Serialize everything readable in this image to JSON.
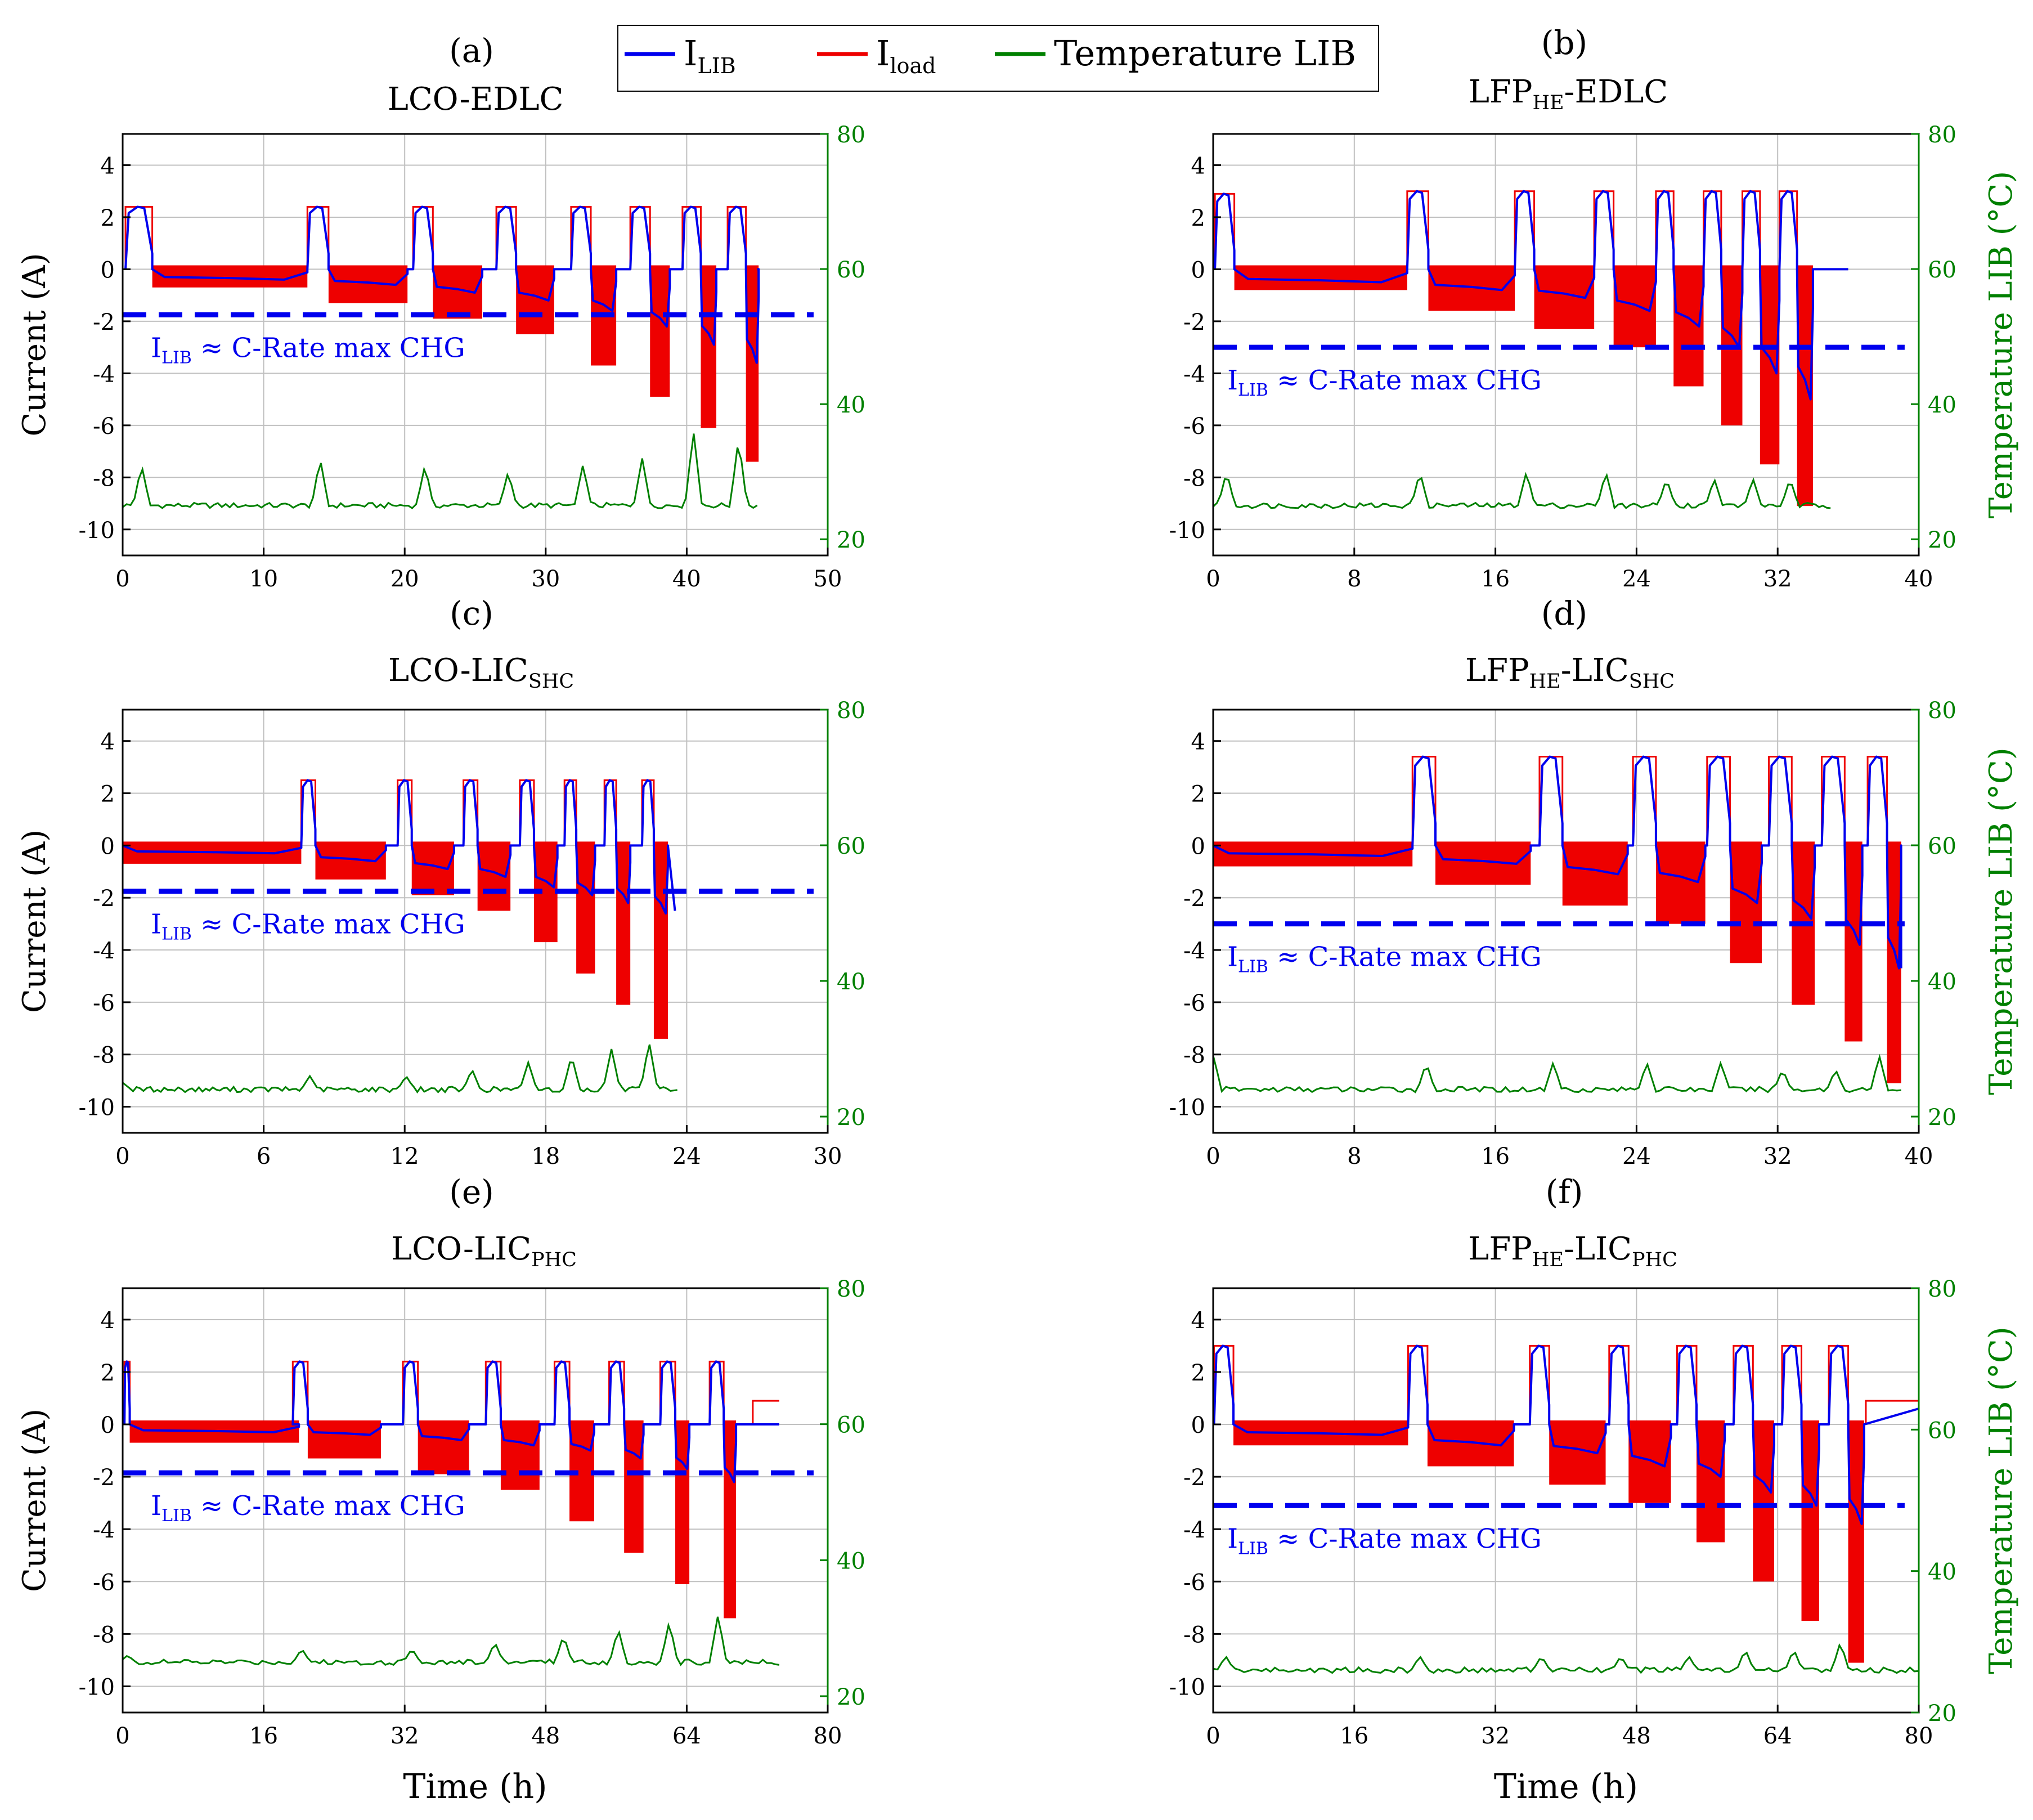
{
  "legend": {
    "items": [
      {
        "name": "I",
        "sub": "LIB",
        "color": "#0000ee"
      },
      {
        "name": "I",
        "sub": "load",
        "color": "#ee0000"
      },
      {
        "name": "Temperature LIB",
        "sub": "",
        "color": "#008000"
      }
    ]
  },
  "colors": {
    "ilib": "#0000ee",
    "iload": "#ee0000",
    "temp": "#008000",
    "grid": "#c0c0c0"
  },
  "chart_data": [
    {
      "id": "a",
      "type": "line",
      "panel_label": "(a)",
      "title": "LCO-EDLC",
      "title_parts": [
        {
          "t": "LCO-EDLC"
        }
      ],
      "ylabel": "Current (A)",
      "y2label": "",
      "xlim": [
        0,
        50
      ],
      "xticks": [
        0,
        10,
        20,
        30,
        40,
        50
      ],
      "xtick_labels": [
        "0",
        "10",
        "20",
        "30",
        "40",
        "50"
      ],
      "ylim": [
        -11,
        5.2
      ],
      "yticks": [
        4,
        2,
        0,
        -2,
        -4,
        -6,
        -8,
        -10
      ],
      "ytick_labels": [
        "4",
        "2",
        "0",
        "-2",
        "-4",
        "-6",
        "-8",
        "-10"
      ],
      "y2lim": [
        17.6,
        80
      ],
      "y2ticks": [
        20,
        40,
        60,
        80
      ],
      "y2tick_labels": [
        "20",
        "40",
        "60",
        "80"
      ],
      "annotation": {
        "prefix": "I",
        "sub": "LIB",
        "suffix": " ≈ C-Rate max CHG"
      },
      "cmax": -1.75,
      "cycles": [
        {
          "s": 0.2,
          "pw": 1.9,
          "cp": 2.4,
          "dw": 11.0,
          "dl": -0.7,
          "dm": -0.4
        },
        {
          "s": 13.1,
          "pw": 1.5,
          "cp": 2.4,
          "dw": 5.6,
          "dl": -1.3,
          "dm": -0.6
        },
        {
          "s": 20.6,
          "pw": 1.4,
          "cp": 2.4,
          "dw": 3.5,
          "dl": -1.9,
          "dm": -0.9
        },
        {
          "s": 26.5,
          "pw": 1.4,
          "cp": 2.4,
          "dw": 2.7,
          "dl": -2.5,
          "dm": -1.2
        },
        {
          "s": 31.8,
          "pw": 1.4,
          "cp": 2.4,
          "dw": 1.8,
          "dl": -3.7,
          "dm": -1.6
        },
        {
          "s": 36.0,
          "pw": 1.4,
          "cp": 2.4,
          "dw": 1.4,
          "dl": -4.9,
          "dm": -2.2
        },
        {
          "s": 39.7,
          "pw": 1.3,
          "cp": 2.4,
          "dw": 1.1,
          "dl": -6.1,
          "dm": -2.9
        },
        {
          "s": 42.9,
          "pw": 1.3,
          "cp": 2.4,
          "dw": 0.9,
          "dl": -7.4,
          "dm": -3.6
        }
      ],
      "tail_end": 45.0,
      "tail_val": 0,
      "temp_base": 25,
      "temp_spikes": [
        31,
        32,
        31,
        30,
        31,
        32,
        36,
        35
      ],
      "temp_end": 45.0
    },
    {
      "id": "b",
      "type": "line",
      "panel_label": "(b)",
      "title": "LFP HE-EDLC",
      "title_parts": [
        {
          "t": "LFP"
        },
        {
          "t": "HE",
          "sub": true
        },
        {
          "t": "-EDLC"
        }
      ],
      "ylabel": "",
      "y2label": "Temperature LIB (°C)",
      "xlim": [
        0,
        40
      ],
      "xticks": [
        0,
        8,
        16,
        24,
        32,
        40
      ],
      "xtick_labels": [
        "0",
        "8",
        "16",
        "24",
        "32",
        "40"
      ],
      "ylim": [
        -11,
        5.2
      ],
      "yticks": [
        4,
        2,
        0,
        -2,
        -4,
        -6,
        -8,
        -10
      ],
      "ytick_labels": [
        "4",
        "2",
        "0",
        "-2",
        "-4",
        "-6",
        "-8",
        "-10"
      ],
      "y2lim": [
        17.6,
        80
      ],
      "y2ticks": [
        20,
        40,
        60,
        80
      ],
      "y2tick_labels": [
        "20",
        "40",
        "60",
        "80"
      ],
      "annotation": {
        "prefix": "I",
        "sub": "LIB",
        "suffix": " ≈ C-Rate max CHG"
      },
      "cmax": -3.0,
      "cycles": [
        {
          "s": 0.1,
          "pw": 1.1,
          "cp": 2.9,
          "dw": 9.8,
          "dl": -0.8,
          "dm": -0.5
        },
        {
          "s": 11.0,
          "pw": 1.2,
          "cp": 3.0,
          "dw": 4.9,
          "dl": -1.6,
          "dm": -0.8
        },
        {
          "s": 17.1,
          "pw": 1.1,
          "cp": 3.0,
          "dw": 3.4,
          "dl": -2.3,
          "dm": -1.1
        },
        {
          "s": 21.6,
          "pw": 1.1,
          "cp": 3.0,
          "dw": 2.4,
          "dl": -3.0,
          "dm": -1.6
        },
        {
          "s": 25.1,
          "pw": 1.0,
          "cp": 3.0,
          "dw": 1.7,
          "dl": -4.5,
          "dm": -2.2
        },
        {
          "s": 27.8,
          "pw": 1.0,
          "cp": 3.0,
          "dw": 1.2,
          "dl": -6.0,
          "dm": -3.0
        },
        {
          "s": 30.0,
          "pw": 1.0,
          "cp": 3.0,
          "dw": 1.1,
          "dl": -7.5,
          "dm": -4.0
        },
        {
          "s": 32.1,
          "pw": 1.0,
          "cp": 3.0,
          "dw": 0.9,
          "dl": -9.1,
          "dm": -5.0
        }
      ],
      "tail_end": 36.0,
      "tail_val": 0,
      "temp_base": 25,
      "temp_spikes": [
        30,
        30,
        30,
        30,
        29,
        29,
        29,
        29
      ],
      "temp_end": 35.0
    },
    {
      "id": "c",
      "type": "line",
      "panel_label": "(c)",
      "title": "LCO-LIC SHC",
      "title_parts": [
        {
          "t": "LCO-LIC"
        },
        {
          "t": "SHC",
          "sub": true
        }
      ],
      "ylabel": "Current (A)",
      "y2label": "",
      "xlim": [
        0,
        30
      ],
      "xticks": [
        0,
        6,
        12,
        18,
        24,
        30
      ],
      "xtick_labels": [
        "0",
        "6",
        "12",
        "18",
        "24",
        "30"
      ],
      "ylim": [
        -11,
        5.2
      ],
      "yticks": [
        4,
        2,
        0,
        -2,
        -4,
        -6,
        -8,
        -10
      ],
      "ytick_labels": [
        "4",
        "2",
        "0",
        "-2",
        "-4",
        "-6",
        "-8",
        "-10"
      ],
      "y2lim": [
        17.6,
        80
      ],
      "y2ticks": [
        20,
        40,
        60,
        80
      ],
      "y2tick_labels": [
        "20",
        "40",
        "60",
        "80"
      ],
      "annotation": {
        "prefix": "I",
        "sub": "LIB",
        "suffix": " ≈ C-Rate max CHG"
      },
      "cmax": -1.75,
      "cycles": [
        {
          "s": 0.0,
          "pw": 0.0,
          "cp": 0.0,
          "dw": 7.6,
          "dl": -0.7,
          "dm": -0.3
        },
        {
          "s": 7.6,
          "pw": 0.6,
          "cp": 2.5,
          "dw": 3.0,
          "dl": -1.3,
          "dm": -0.6
        },
        {
          "s": 11.7,
          "pw": 0.6,
          "cp": 2.5,
          "dw": 1.8,
          "dl": -1.9,
          "dm": -0.9
        },
        {
          "s": 14.5,
          "pw": 0.6,
          "cp": 2.5,
          "dw": 1.4,
          "dl": -2.5,
          "dm": -1.2
        },
        {
          "s": 16.9,
          "pw": 0.6,
          "cp": 2.5,
          "dw": 1.0,
          "dl": -3.7,
          "dm": -1.6
        },
        {
          "s": 18.8,
          "pw": 0.5,
          "cp": 2.5,
          "dw": 0.8,
          "dl": -4.9,
          "dm": -1.9
        },
        {
          "s": 20.5,
          "pw": 0.5,
          "cp": 2.5,
          "dw": 0.6,
          "dl": -6.1,
          "dm": -2.2
        },
        {
          "s": 22.1,
          "pw": 0.5,
          "cp": 2.5,
          "dw": 0.6,
          "dl": -7.4,
          "dm": -2.6
        }
      ],
      "tail_end": 23.5,
      "tail_val": -2.5,
      "temp_base": 24,
      "temp_spikes": [
        25,
        26,
        26,
        27,
        28,
        29,
        30,
        31
      ],
      "temp_end": 23.6
    },
    {
      "id": "d",
      "type": "line",
      "panel_label": "(d)",
      "title": "LFP HE-LIC SHC",
      "title_parts": [
        {
          "t": "LFP"
        },
        {
          "t": "HE",
          "sub": true
        },
        {
          "t": "-LIC"
        },
        {
          "t": "SHC",
          "sub": true
        }
      ],
      "ylabel": "",
      "y2label": "Temperature LIB (°C)",
      "xlim": [
        0,
        40
      ],
      "xticks": [
        0,
        8,
        16,
        24,
        32,
        40
      ],
      "xtick_labels": [
        "0",
        "8",
        "16",
        "24",
        "32",
        "40"
      ],
      "ylim": [
        -11,
        5.2
      ],
      "yticks": [
        4,
        2,
        0,
        -2,
        -4,
        -6,
        -8,
        -10
      ],
      "ytick_labels": [
        "4",
        "2",
        "0",
        "-2",
        "-4",
        "-6",
        "-8",
        "-10"
      ],
      "y2lim": [
        17.6,
        80
      ],
      "y2ticks": [
        20,
        40,
        60,
        80
      ],
      "y2tick_labels": [
        "20",
        "40",
        "60",
        "80"
      ],
      "annotation": {
        "prefix": "I",
        "sub": "LIB",
        "suffix": " ≈ C-Rate max CHG"
      },
      "cmax": -3.0,
      "cycles": [
        {
          "s": 0.0,
          "pw": 0.0,
          "cp": 0.0,
          "dw": 11.3,
          "dl": -0.8,
          "dm": -0.4
        },
        {
          "s": 11.3,
          "pw": 1.3,
          "cp": 3.4,
          "dw": 5.4,
          "dl": -1.5,
          "dm": -0.7
        },
        {
          "s": 18.5,
          "pw": 1.3,
          "cp": 3.4,
          "dw": 3.7,
          "dl": -2.3,
          "dm": -1.1
        },
        {
          "s": 23.8,
          "pw": 1.3,
          "cp": 3.4,
          "dw": 2.8,
          "dl": -3.0,
          "dm": -1.4
        },
        {
          "s": 28.0,
          "pw": 1.3,
          "cp": 3.4,
          "dw": 1.8,
          "dl": -4.5,
          "dm": -2.2
        },
        {
          "s": 31.5,
          "pw": 1.3,
          "cp": 3.4,
          "dw": 1.3,
          "dl": -6.1,
          "dm": -2.8
        },
        {
          "s": 34.5,
          "pw": 1.3,
          "cp": 3.4,
          "dw": 1.0,
          "dl": -7.5,
          "dm": -3.8
        },
        {
          "s": 37.1,
          "pw": 1.1,
          "cp": 3.4,
          "dw": 0.8,
          "dl": -9.1,
          "dm": -4.7
        }
      ],
      "tail_end": 39.0,
      "tail_val": -4.7,
      "temp_base": 24,
      "temp_spikes": [
        29,
        28,
        28,
        28,
        28,
        27,
        27,
        29
      ],
      "temp_end": 39.0
    },
    {
      "id": "e",
      "type": "line",
      "panel_label": "(e)",
      "title": "LCO-LIC PHC",
      "title_parts": [
        {
          "t": "LCO-LIC"
        },
        {
          "t": "PHC",
          "sub": true
        }
      ],
      "ylabel": "Current (A)",
      "y2label": "",
      "xlabel": "Time (h)",
      "xlim": [
        0,
        80
      ],
      "xticks": [
        0,
        16,
        32,
        48,
        64,
        80
      ],
      "xtick_labels": [
        "0",
        "16",
        "32",
        "48",
        "64",
        "80"
      ],
      "ylim": [
        -11,
        5.2
      ],
      "yticks": [
        4,
        2,
        0,
        -2,
        -4,
        -6,
        -8,
        -10
      ],
      "ytick_labels": [
        "4",
        "2",
        "0",
        "-2",
        "-4",
        "-6",
        "-8",
        "-10"
      ],
      "y2lim": [
        17.6,
        80
      ],
      "y2ticks": [
        20,
        40,
        60,
        80
      ],
      "y2tick_labels": [
        "20",
        "40",
        "60",
        "80"
      ],
      "annotation": {
        "prefix": "I",
        "sub": "LIB",
        "suffix": " ≈ C-Rate max CHG"
      },
      "cmax": -1.85,
      "cycles": [
        {
          "s": 0.2,
          "pw": 0.6,
          "cp": 2.4,
          "dw": 19.2,
          "dl": -0.7,
          "dm": -0.3
        },
        {
          "s": 19.3,
          "pw": 1.7,
          "cp": 2.4,
          "dw": 8.3,
          "dl": -1.3,
          "dm": -0.4
        },
        {
          "s": 31.8,
          "pw": 1.7,
          "cp": 2.4,
          "dw": 5.8,
          "dl": -1.9,
          "dm": -0.6
        },
        {
          "s": 41.2,
          "pw": 1.7,
          "cp": 2.4,
          "dw": 4.4,
          "dl": -2.5,
          "dm": -0.8
        },
        {
          "s": 49.0,
          "pw": 1.7,
          "cp": 2.4,
          "dw": 2.8,
          "dl": -3.7,
          "dm": -1.0
        },
        {
          "s": 55.2,
          "pw": 1.7,
          "cp": 2.4,
          "dw": 2.2,
          "dl": -4.9,
          "dm": -1.3
        },
        {
          "s": 61.0,
          "pw": 1.7,
          "cp": 2.4,
          "dw": 1.6,
          "dl": -6.1,
          "dm": -1.7
        },
        {
          "s": 66.6,
          "pw": 1.6,
          "cp": 2.4,
          "dw": 1.4,
          "dl": -7.4,
          "dm": -2.2
        }
      ],
      "tail_end": 74.5,
      "tail_val": 0,
      "load_tail": {
        "x0": 71.5,
        "x1": 74.5,
        "val": 0.9
      },
      "temp_base": 25,
      "temp_spikes": [
        26,
        27,
        27,
        28,
        29,
        30,
        31,
        32
      ],
      "temp_end": 74.5
    },
    {
      "id": "f",
      "type": "line",
      "panel_label": "(f)",
      "title": "LFP HE-LIC PHC",
      "title_parts": [
        {
          "t": "LFP"
        },
        {
          "t": "HE",
          "sub": true
        },
        {
          "t": "-LIC"
        },
        {
          "t": "PHC",
          "sub": true
        }
      ],
      "ylabel": "",
      "y2label": "Temperature LIB (°C)",
      "xlabel": "Time (h)",
      "xlim": [
        0,
        80
      ],
      "xticks": [
        0,
        16,
        32,
        48,
        64,
        80
      ],
      "xtick_labels": [
        "0",
        "16",
        "32",
        "48",
        "64",
        "80"
      ],
      "ylim": [
        -11,
        5.2
      ],
      "yticks": [
        4,
        2,
        0,
        -2,
        -4,
        -6,
        -8,
        -10
      ],
      "ytick_labels": [
        "4",
        "2",
        "0",
        "-2",
        "-4",
        "-6",
        "-8",
        "-10"
      ],
      "y2lim": [
        20,
        80
      ],
      "y2ticks": [
        20,
        40,
        60,
        80
      ],
      "y2tick_labels": [
        "20",
        "40",
        "60",
        "80"
      ],
      "annotation": {
        "prefix": "I",
        "sub": "LIB",
        "suffix": " ≈ C-Rate max CHG"
      },
      "cmax": -3.1,
      "cycles": [
        {
          "s": 0.1,
          "pw": 2.2,
          "cp": 3.0,
          "dw": 19.8,
          "dl": -0.8,
          "dm": -0.4
        },
        {
          "s": 22.1,
          "pw": 2.2,
          "cp": 3.0,
          "dw": 9.8,
          "dl": -1.6,
          "dm": -0.8
        },
        {
          "s": 35.9,
          "pw": 2.2,
          "cp": 3.0,
          "dw": 6.4,
          "dl": -2.3,
          "dm": -1.1
        },
        {
          "s": 44.9,
          "pw": 2.2,
          "cp": 3.0,
          "dw": 4.8,
          "dl": -3.0,
          "dm": -1.6
        },
        {
          "s": 52.6,
          "pw": 2.2,
          "cp": 3.0,
          "dw": 3.2,
          "dl": -4.5,
          "dm": -2.0
        },
        {
          "s": 59.0,
          "pw": 2.2,
          "cp": 3.0,
          "dw": 2.4,
          "dl": -6.0,
          "dm": -2.6
        },
        {
          "s": 64.5,
          "pw": 2.2,
          "cp": 3.0,
          "dw": 2.0,
          "dl": -7.5,
          "dm": -3.1
        },
        {
          "s": 69.8,
          "pw": 2.2,
          "cp": 3.0,
          "dw": 1.8,
          "dl": -9.1,
          "dm": -3.8
        }
      ],
      "tail_end": 80,
      "tail_val": 0.6,
      "load_tail": {
        "x0": 74.0,
        "x1": 80,
        "val": 0.9
      },
      "temp_base": 26,
      "temp_spikes": [
        28,
        28,
        28,
        28,
        28,
        29,
        29,
        30
      ],
      "temp_end": 80
    }
  ]
}
